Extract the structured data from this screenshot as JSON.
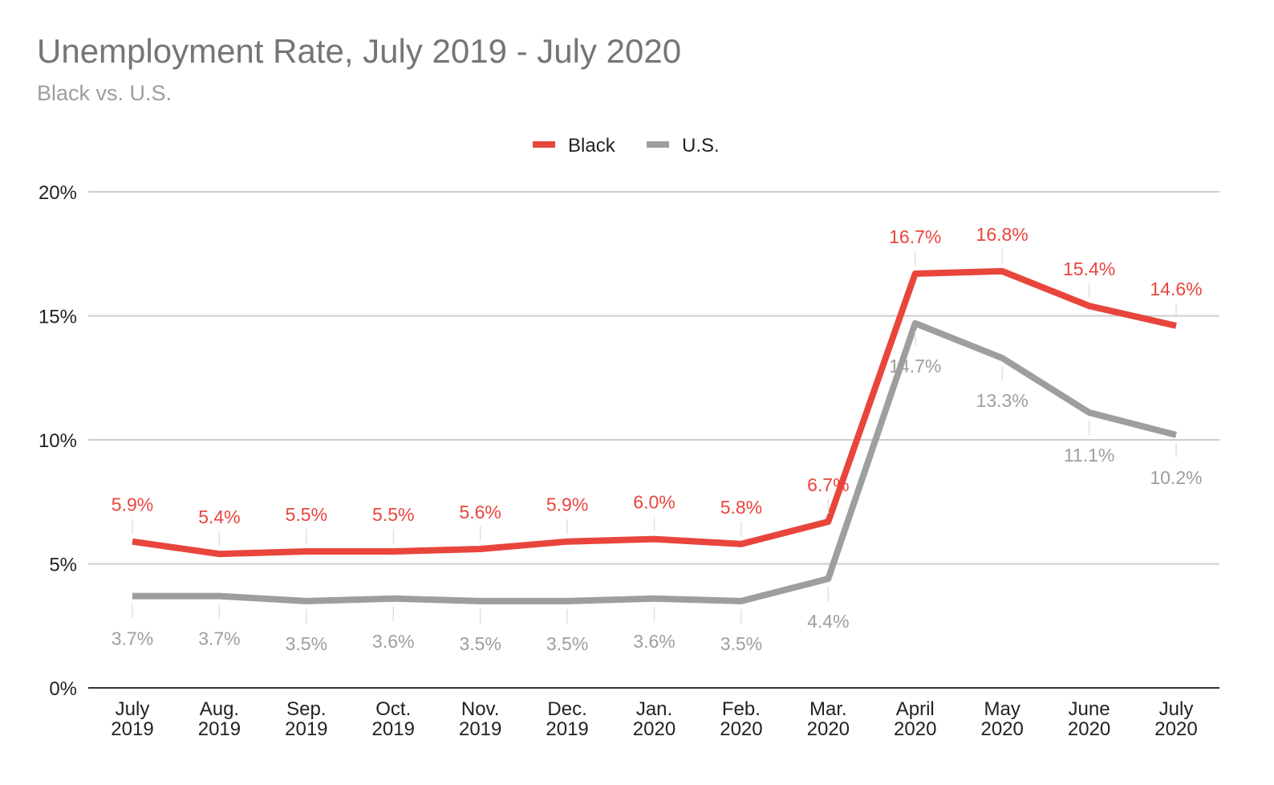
{
  "chart_data": {
    "type": "line",
    "title": "Unemployment Rate, July 2019 - July 2020",
    "subtitle": "Black vs. U.S.",
    "xlabel": "",
    "ylabel": "",
    "categories": [
      [
        "July",
        "2019"
      ],
      [
        "Aug.",
        "2019"
      ],
      [
        "Sep.",
        "2019"
      ],
      [
        "Oct.",
        "2019"
      ],
      [
        "Nov.",
        "2019"
      ],
      [
        "Dec.",
        "2019"
      ],
      [
        "Jan.",
        "2020"
      ],
      [
        "Feb.",
        "2020"
      ],
      [
        "Mar.",
        "2020"
      ],
      [
        "April",
        "2020"
      ],
      [
        "May",
        "2020"
      ],
      [
        "June",
        "2020"
      ],
      [
        "July",
        "2020"
      ]
    ],
    "series": [
      {
        "name": "Black",
        "color": "#e8453c",
        "label_position": "above",
        "values": [
          5.9,
          5.4,
          5.5,
          5.5,
          5.6,
          5.9,
          6.0,
          5.8,
          6.7,
          16.7,
          16.8,
          15.4,
          14.6
        ],
        "labels": [
          "5.9%",
          "5.4%",
          "5.5%",
          "5.5%",
          "5.6%",
          "5.9%",
          "6.0%",
          "5.8%",
          "6.7%",
          "16.7%",
          "16.8%",
          "15.4%",
          "14.6%"
        ]
      },
      {
        "name": "U.S.",
        "color": "#9e9e9e",
        "label_position": "below",
        "values": [
          3.7,
          3.7,
          3.5,
          3.6,
          3.5,
          3.5,
          3.6,
          3.5,
          4.4,
          14.7,
          13.3,
          11.1,
          10.2
        ],
        "labels": [
          "3.7%",
          "3.7%",
          "3.5%",
          "3.6%",
          "3.5%",
          "3.5%",
          "3.6%",
          "3.5%",
          "4.4%",
          "14.7%",
          "13.3%",
          "11.1%",
          "10.2%"
        ]
      }
    ],
    "ylim": [
      0,
      20
    ],
    "yticks": [
      0,
      5,
      10,
      15,
      20
    ],
    "ytick_labels": [
      "0%",
      "5%",
      "10%",
      "15%",
      "20%"
    ],
    "grid": true,
    "legend_position": "top-center"
  }
}
